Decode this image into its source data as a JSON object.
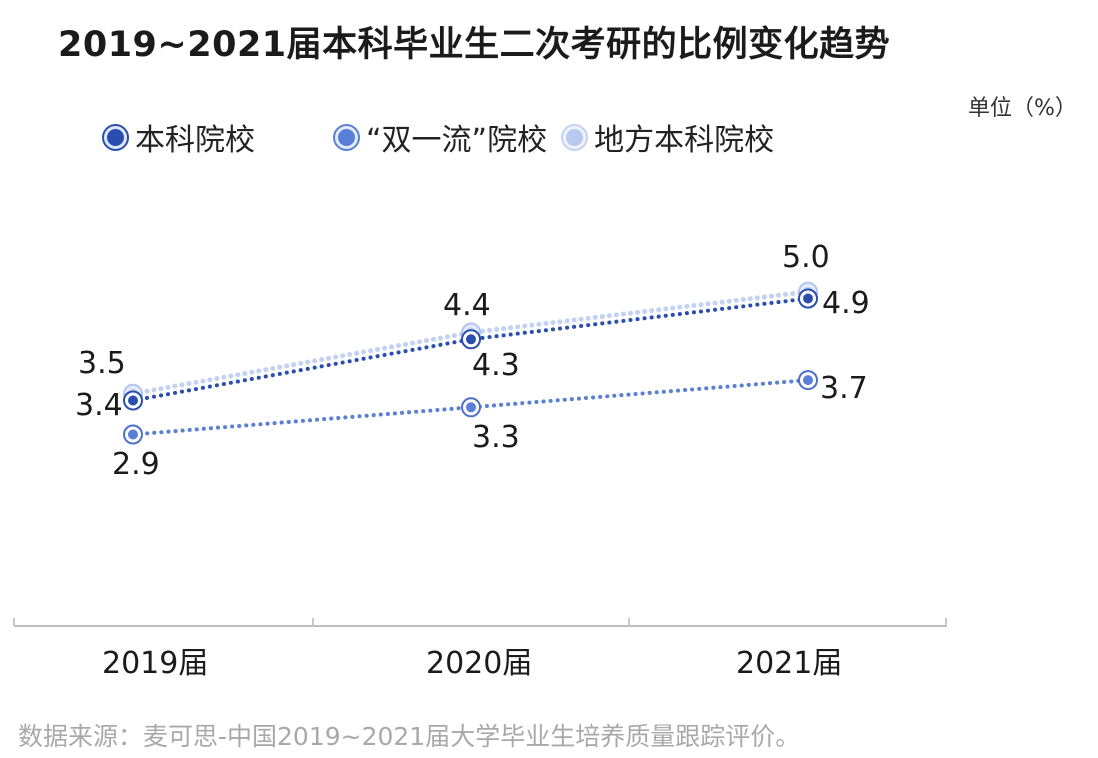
{
  "title": "2019~2021届本科毕业生二次考研的比例变化趋势",
  "unit": "单位（%）",
  "source": "数据来源：麦可思-中国2019~2021届大学毕业生培养质量跟踪评价。",
  "legend": [
    {
      "label": "本科院校",
      "color": "#2a4eb0"
    },
    {
      "label": "“双一流”院校",
      "color": "#5a7fd6"
    },
    {
      "label": "地方本科院校",
      "color": "#b8c8ef"
    }
  ],
  "chart_data": {
    "type": "line",
    "categories": [
      "2019届",
      "2020届",
      "2021届"
    ],
    "series": [
      {
        "name": "本科院校",
        "color": "#2a4eb0",
        "values": [
          3.4,
          4.3,
          4.9
        ]
      },
      {
        "name": "“双一流”院校",
        "color": "#5a7fd6",
        "values": [
          2.9,
          3.3,
          3.7
        ]
      },
      {
        "name": "地方本科院校",
        "color": "#b8c8ef",
        "values": [
          3.5,
          4.4,
          5.0
        ]
      }
    ],
    "grid": false,
    "legend_position": "top-left"
  }
}
